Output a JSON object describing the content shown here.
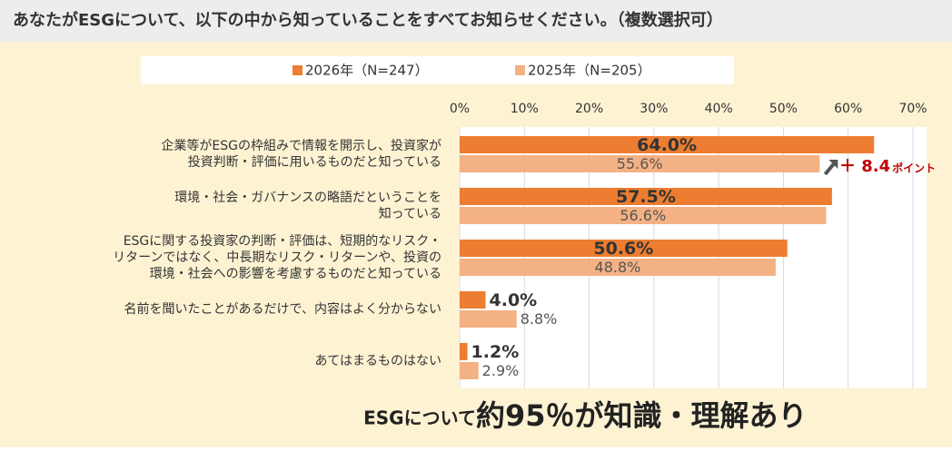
{
  "chart_data": {
    "type": "bar",
    "title": "あなたがESGについて、以下の中から知っていることをすべてお知らせください。（複数選択可）",
    "categories": [
      [
        "企業等がESGの枠組みで情報を開示し、投資家が",
        "投資判断・評価に用いるものだと知っている"
      ],
      [
        "環境・社会・ガバナンスの略語だということを",
        "知っている"
      ],
      [
        "ESGに関する投資家の判断・評価は、短期的なリスク・",
        "リターンではなく、中長期なリスク・リターンや、投資の",
        "環境・社会への影響を考慮するものだと知っている"
      ],
      [
        "名前を聞いたことがあるだけで、内容はよく分からない"
      ],
      [
        "あてはまるものはない"
      ]
    ],
    "series": [
      {
        "name": "2026年（N=247）",
        "color": "#ed7d31",
        "values": [
          64.0,
          57.5,
          50.6,
          4.0,
          1.2
        ],
        "value_labels": [
          "64.0%",
          "57.5%",
          "50.6%",
          "4.0%",
          "1.2%"
        ]
      },
      {
        "name": "2025年（N=205）",
        "color": "#f4b183",
        "values": [
          55.6,
          56.6,
          48.8,
          8.8,
          2.9
        ],
        "value_labels": [
          "55.6%",
          "56.6%",
          "48.8%",
          "8.8%",
          "2.9%"
        ]
      }
    ],
    "xlim": [
      0,
      70
    ],
    "xticks": [
      {
        "value": 0,
        "label": "0%"
      },
      {
        "value": 10,
        "label": "10%"
      },
      {
        "value": 20,
        "label": "20%"
      },
      {
        "value": 30,
        "label": "30%"
      },
      {
        "value": 40,
        "label": "40%"
      },
      {
        "value": 50,
        "label": "50%"
      },
      {
        "value": 60,
        "label": "60%"
      },
      {
        "value": 70,
        "label": "70%"
      }
    ],
    "grid": true,
    "annotation": {
      "text": "＋ 8.4",
      "unit": "ポイント"
    },
    "footer": {
      "prefix": "ESGについて ",
      "emphasis": "約95％が知識・理解あり"
    }
  }
}
